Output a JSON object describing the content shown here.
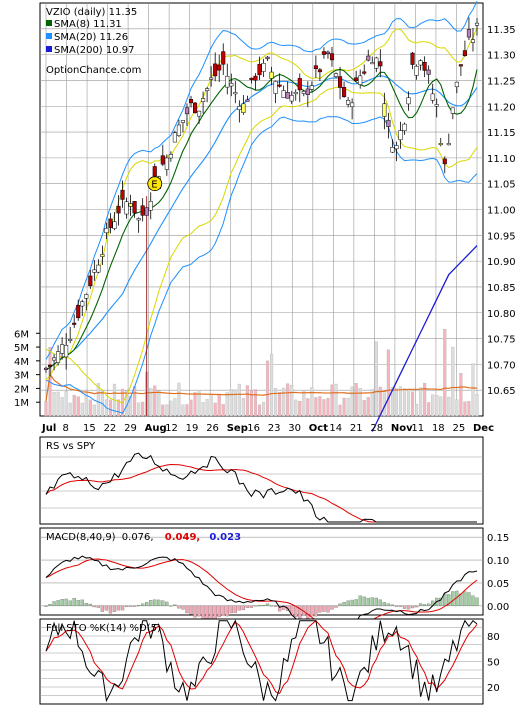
{
  "chart_data": [
    {
      "type": "candlestick",
      "title": "VZIO (daily) 11.35",
      "watermark": "OptionChance.com",
      "legend": [
        {
          "name": "SMA(8) 11.31",
          "color": "#006400"
        },
        {
          "name": "SMA(20) 11.26",
          "color": "#1e90ff"
        },
        {
          "name": "SMA(200) 10.97",
          "color": "#1c1cd8"
        }
      ],
      "events": [
        {
          "label": "E",
          "date": "Aug 7",
          "price": 11.05
        },
        {
          "label": "E",
          "date": "Nov 6",
          "price": 11.42
        }
      ],
      "x_ticks": [
        "Jul",
        "8",
        "15",
        "22",
        "29",
        "Aug",
        "12",
        "19",
        "26",
        "Sep",
        "16",
        "23",
        "30",
        "Oct",
        "14",
        "21",
        "28",
        "Nov",
        "11",
        "18",
        "25",
        "Dec"
      ],
      "y_ticks": [
        "11.35",
        "11.30",
        "11.25",
        "11.20",
        "11.15",
        "11.10",
        "11.05",
        "11.00",
        "10.95",
        "10.90",
        "10.85",
        "10.80",
        "10.75",
        "10.70",
        "10.65"
      ],
      "volume_ticks": [
        "6M",
        "5M",
        "4M",
        "3M",
        "2M",
        "1M"
      ],
      "ylim": [
        10.6,
        11.4
      ],
      "volume_ylim": [
        0,
        6.6
      ],
      "grid": true,
      "last_close": 11.35
    },
    {
      "type": "line",
      "label": "RS vs SPY",
      "grid": true
    },
    {
      "type": "line",
      "label_prefix": "MACD(8,40,9)",
      "values_text": [
        "0.076,",
        "0.049,",
        "0.023"
      ],
      "value_colors": [
        "#000000",
        "#e00000",
        "#1c1cd8"
      ],
      "y_ticks": [
        "0.15",
        "0.10",
        "0.05",
        "0.00"
      ],
      "ylim": [
        -0.02,
        0.17
      ],
      "grid": true
    },
    {
      "type": "line",
      "label": "Full STO %K(14) %D(5)",
      "y_ticks": [
        "80",
        "50",
        "20"
      ],
      "ylim": [
        0,
        100
      ],
      "grid": true
    }
  ]
}
